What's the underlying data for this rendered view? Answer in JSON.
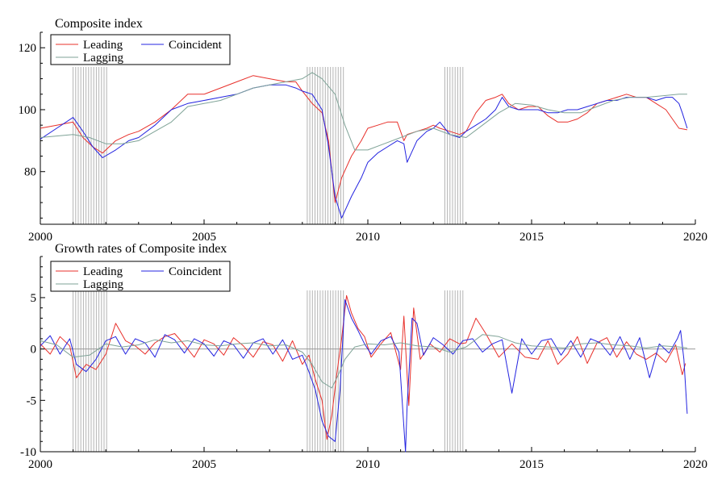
{
  "chart_data": [
    {
      "type": "line",
      "title": "Composite index",
      "xlim": [
        2000,
        2020
      ],
      "ylim": [
        63,
        125
      ],
      "x_ticks": [
        2000,
        2005,
        2010,
        2015,
        2020
      ],
      "y_ticks": [
        80,
        100,
        120
      ],
      "x_tick_labels": [
        "2000",
        "2005",
        "2010",
        "2015",
        "2020"
      ],
      "y_tick_labels": [
        "80",
        "100",
        "120"
      ],
      "legend_placement": "top-left",
      "shaded_periods": [
        [
          2001.0,
          2002.05
        ],
        [
          2008.15,
          2009.3
        ],
        [
          2012.35,
          2012.95
        ]
      ],
      "series": [
        {
          "name": "Leading",
          "color": "#e8302b",
          "x": [
            2000.0,
            2000.5,
            2001.0,
            2001.3,
            2001.6,
            2001.9,
            2002.3,
            2002.7,
            2003.0,
            2003.5,
            2004.0,
            2004.5,
            2005.0,
            2005.5,
            2006.0,
            2006.5,
            2007.0,
            2007.5,
            2007.8,
            2008.0,
            2008.3,
            2008.6,
            2008.8,
            2009.0,
            2009.2,
            2009.5,
            2009.8,
            2010.0,
            2010.3,
            2010.6,
            2010.9,
            2011.1,
            2011.2,
            2011.5,
            2011.8,
            2012.0,
            2012.2,
            2012.5,
            2012.8,
            2013.0,
            2013.3,
            2013.6,
            2013.9,
            2014.1,
            2014.3,
            2014.6,
            2014.9,
            2015.2,
            2015.5,
            2015.8,
            2016.1,
            2016.4,
            2016.7,
            2017.0,
            2017.3,
            2017.6,
            2017.9,
            2018.2,
            2018.5,
            2018.8,
            2019.1,
            2019.3,
            2019.5,
            2019.75
          ],
          "values": [
            94,
            95,
            96,
            91,
            88,
            86,
            90,
            92,
            93,
            96,
            100,
            105,
            105,
            107,
            109,
            111,
            110,
            109,
            109,
            106,
            102,
            99,
            90,
            70,
            78,
            85,
            90,
            94,
            95,
            96,
            96,
            90,
            92,
            93,
            94,
            95,
            94,
            93,
            92,
            93,
            99,
            103,
            104,
            105,
            102,
            100,
            101,
            101,
            98,
            96,
            96,
            97,
            99,
            102,
            103,
            104,
            105,
            104,
            104,
            102,
            100,
            97,
            94,
            93.5
          ]
        },
        {
          "name": "Coincident",
          "color": "#2424e0",
          "x": [
            2000.0,
            2000.5,
            2001.0,
            2001.3,
            2001.6,
            2001.9,
            2002.3,
            2002.7,
            2003.0,
            2003.5,
            2004.0,
            2004.5,
            2005.0,
            2005.5,
            2006.0,
            2006.5,
            2007.0,
            2007.5,
            2007.8,
            2008.0,
            2008.3,
            2008.6,
            2008.8,
            2009.0,
            2009.2,
            2009.5,
            2009.8,
            2010.0,
            2010.3,
            2010.6,
            2010.9,
            2011.1,
            2011.2,
            2011.5,
            2011.8,
            2012.0,
            2012.2,
            2012.5,
            2012.8,
            2013.0,
            2013.3,
            2013.6,
            2013.9,
            2014.1,
            2014.3,
            2014.6,
            2014.9,
            2015.2,
            2015.5,
            2015.8,
            2016.1,
            2016.4,
            2016.7,
            2017.0,
            2017.3,
            2017.6,
            2017.9,
            2018.2,
            2018.5,
            2018.8,
            2019.1,
            2019.3,
            2019.5,
            2019.6,
            2019.75
          ],
          "values": [
            90.5,
            94,
            97.5,
            93,
            88,
            84.5,
            87,
            90,
            91,
            95,
            100,
            102,
            103,
            104,
            105,
            107,
            108,
            108,
            107,
            106,
            105,
            100,
            88,
            72,
            65,
            72,
            78,
            83,
            86,
            88,
            90,
            89,
            83,
            90,
            93,
            94,
            96,
            92,
            91,
            93,
            95,
            97,
            100,
            104,
            101,
            100,
            100,
            100,
            99,
            99,
            100,
            100,
            101,
            102,
            103,
            103,
            104,
            104,
            104,
            103,
            104,
            104,
            102,
            99,
            94
          ]
        },
        {
          "name": "Lagging",
          "color": "#7fa397",
          "x": [
            2000.0,
            2000.5,
            2001.0,
            2001.5,
            2002.0,
            2002.5,
            2003.0,
            2003.5,
            2004.0,
            2004.5,
            2005.0,
            2005.5,
            2006.0,
            2006.5,
            2007.0,
            2007.5,
            2008.0,
            2008.3,
            2008.6,
            2009.0,
            2009.3,
            2009.6,
            2010.0,
            2010.5,
            2011.0,
            2011.5,
            2012.0,
            2012.5,
            2013.0,
            2013.5,
            2014.0,
            2014.5,
            2015.0,
            2015.5,
            2016.0,
            2016.5,
            2017.0,
            2017.5,
            2018.0,
            2018.5,
            2019.0,
            2019.5,
            2019.75
          ],
          "values": [
            91,
            91.5,
            92,
            91,
            89,
            89,
            90,
            93,
            96,
            101,
            102,
            103,
            105,
            107,
            108,
            109,
            110,
            112,
            110,
            105,
            95,
            87,
            87,
            89,
            91,
            93,
            94,
            92,
            91,
            95,
            99,
            102,
            101.5,
            100,
            99,
            99,
            101,
            103,
            104,
            104,
            104.5,
            105,
            105
          ]
        }
      ]
    },
    {
      "type": "line",
      "title": "Growth rates of Composite index",
      "xlim": [
        2000,
        2020
      ],
      "ylim": [
        -10,
        9
      ],
      "x_ticks": [
        2000,
        2005,
        2010,
        2015,
        2020
      ],
      "y_ticks": [
        -10,
        -5,
        0,
        5
      ],
      "x_tick_labels": [
        "2000",
        "2005",
        "2010",
        "2015",
        "2020"
      ],
      "y_tick_labels": [
        "-10",
        "-5",
        "0",
        "5"
      ],
      "legend_placement": "top-left",
      "shaded_periods": [
        [
          2001.0,
          2002.05
        ],
        [
          2008.15,
          2009.3
        ],
        [
          2012.35,
          2012.95
        ]
      ],
      "series": [
        {
          "name": "Leading",
          "color": "#e8302b",
          "x": [
            2000.0,
            2000.3,
            2000.6,
            2000.9,
            2001.1,
            2001.4,
            2001.7,
            2002.0,
            2002.3,
            2002.6,
            2002.9,
            2003.2,
            2003.5,
            2003.8,
            2004.1,
            2004.4,
            2004.7,
            2005.0,
            2005.3,
            2005.6,
            2005.9,
            2006.2,
            2006.5,
            2006.8,
            2007.1,
            2007.4,
            2007.7,
            2008.0,
            2008.2,
            2008.4,
            2008.6,
            2008.75,
            2008.9,
            2009.05,
            2009.2,
            2009.35,
            2009.5,
            2009.7,
            2009.9,
            2010.1,
            2010.4,
            2010.7,
            2011.0,
            2011.1,
            2011.25,
            2011.4,
            2011.6,
            2011.9,
            2012.2,
            2012.5,
            2012.8,
            2013.0,
            2013.3,
            2013.6,
            2014.0,
            2014.4,
            2014.8,
            2015.2,
            2015.5,
            2015.8,
            2016.1,
            2016.4,
            2016.7,
            2017.0,
            2017.3,
            2017.6,
            2017.9,
            2018.2,
            2018.5,
            2018.8,
            2019.1,
            2019.4,
            2019.6,
            2019.7
          ],
          "values": [
            0.5,
            -0.5,
            1.2,
            0.3,
            -2.8,
            -1.5,
            -2.0,
            -0.5,
            2.5,
            0.8,
            0.3,
            -0.5,
            0.6,
            1.2,
            1.5,
            0.4,
            -0.8,
            0.9,
            0.5,
            -0.6,
            1.1,
            0.3,
            -0.8,
            0.7,
            0.4,
            -1.2,
            0.8,
            -1.5,
            -0.6,
            -3.0,
            -5.0,
            -8.8,
            -6.5,
            -2.5,
            1.0,
            5.2,
            3.5,
            2.0,
            1.2,
            -0.8,
            0.5,
            1.6,
            -2.0,
            3.2,
            -5.5,
            4.0,
            -1.0,
            0.5,
            -0.3,
            1.0,
            0.5,
            0.6,
            3.0,
            1.5,
            -0.8,
            0.5,
            -0.8,
            -1.0,
            0.8,
            -1.5,
            -0.5,
            1.2,
            -1.4,
            0.6,
            1.1,
            -0.8,
            0.7,
            -0.5,
            -1.0,
            -0.4,
            -1.3,
            0.4,
            -2.5,
            -1.4
          ]
        },
        {
          "name": "Coincident",
          "color": "#2424e0",
          "x": [
            2000.0,
            2000.3,
            2000.6,
            2000.9,
            2001.1,
            2001.4,
            2001.7,
            2002.0,
            2002.3,
            2002.6,
            2002.9,
            2003.2,
            2003.5,
            2003.8,
            2004.1,
            2004.4,
            2004.7,
            2005.0,
            2005.3,
            2005.6,
            2005.9,
            2006.2,
            2006.5,
            2006.8,
            2007.1,
            2007.4,
            2007.7,
            2008.0,
            2008.2,
            2008.4,
            2008.6,
            2008.8,
            2009.0,
            2009.15,
            2009.3,
            2009.5,
            2009.7,
            2009.9,
            2010.1,
            2010.4,
            2010.7,
            2010.95,
            2011.15,
            2011.2,
            2011.35,
            2011.5,
            2011.7,
            2012.0,
            2012.3,
            2012.6,
            2012.9,
            2013.2,
            2013.5,
            2013.8,
            2014.1,
            2014.4,
            2014.7,
            2015.0,
            2015.3,
            2015.6,
            2015.9,
            2016.2,
            2016.5,
            2016.8,
            2017.1,
            2017.4,
            2017.7,
            2018.0,
            2018.3,
            2018.6,
            2018.9,
            2019.2,
            2019.45,
            2019.55,
            2019.65,
            2019.75
          ],
          "values": [
            0.3,
            1.3,
            -0.5,
            1.0,
            -1.5,
            -2.2,
            -1.0,
            0.8,
            1.2,
            -0.5,
            1.0,
            0.6,
            -0.8,
            1.4,
            0.9,
            -0.4,
            1.0,
            0.5,
            -0.7,
            0.8,
            0.4,
            -0.9,
            0.6,
            1.0,
            -0.5,
            0.9,
            -1.0,
            -0.6,
            -2.2,
            -4.0,
            -7.0,
            -8.5,
            -9.0,
            -4.0,
            4.8,
            3.0,
            1.8,
            0.5,
            -0.5,
            0.8,
            1.2,
            -0.3,
            -10.0,
            -5.5,
            3.0,
            2.5,
            -0.6,
            1.1,
            0.4,
            -0.5,
            0.8,
            1.0,
            -0.3,
            0.5,
            0.9,
            -4.3,
            1.0,
            -0.5,
            0.8,
            1.0,
            -0.6,
            0.8,
            -0.8,
            1.0,
            0.6,
            -0.6,
            1.2,
            -1.0,
            1.1,
            -2.8,
            0.5,
            -0.4,
            1.0,
            1.8,
            -1.0,
            -6.3
          ]
        },
        {
          "name": "Lagging",
          "color": "#7fa397",
          "x": [
            2000.0,
            2000.5,
            2001.0,
            2001.5,
            2002.0,
            2002.5,
            2003.0,
            2003.5,
            2004.0,
            2004.5,
            2005.0,
            2005.5,
            2006.0,
            2006.5,
            2007.0,
            2007.5,
            2008.0,
            2008.3,
            2008.6,
            2008.9,
            2009.1,
            2009.3,
            2009.6,
            2010.0,
            2010.5,
            2011.0,
            2011.5,
            2012.0,
            2012.5,
            2013.0,
            2013.5,
            2014.0,
            2014.5,
            2015.0,
            2015.5,
            2016.0,
            2016.5,
            2017.0,
            2017.5,
            2018.0,
            2018.5,
            2019.0,
            2019.5,
            2019.75
          ],
          "values": [
            0.8,
            0.4,
            -0.8,
            -0.6,
            0.5,
            0.2,
            0.4,
            0.9,
            0.6,
            0.8,
            0.4,
            0.3,
            0.5,
            0.6,
            0.3,
            0.4,
            -0.3,
            -1.5,
            -3.2,
            -3.8,
            -2.5,
            -1.0,
            0.2,
            0.5,
            0.4,
            0.6,
            0.3,
            0.2,
            -0.3,
            0.2,
            1.4,
            1.2,
            0.6,
            0.3,
            0.2,
            0.1,
            0.5,
            0.6,
            0.4,
            0.3,
            0.1,
            0.3,
            0.2,
            0.1
          ]
        }
      ]
    }
  ]
}
